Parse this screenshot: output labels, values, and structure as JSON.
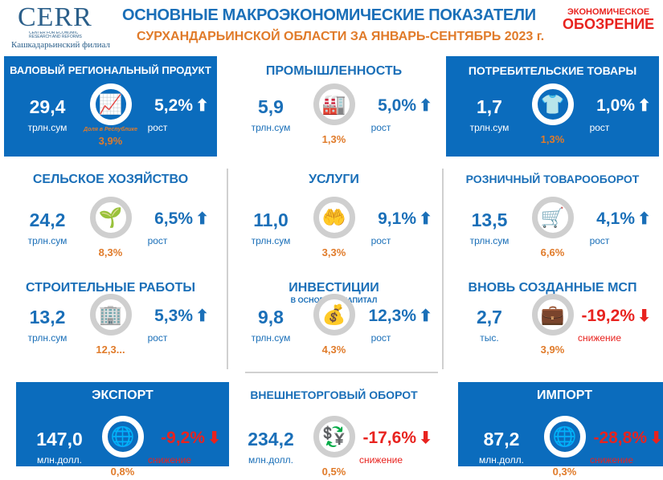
{
  "header": {
    "logo_text": "CERR",
    "logo_subtext": "CENTER FOR ECONOMIC RESEARCH AND REFORMS",
    "branch": "Кашкадарьинский филиал",
    "title": "ОСНОВНЫЕ МАКРОЭКОНОМИЧЕСКИЕ ПОКАЗАТЕЛИ",
    "subtitle": "СУРХАНДАРЬИНСКОЙ ОБЛАСТИ ЗА ЯНВАРЬ-СЕНТЯБРЬ 2023 г.",
    "brand_line1": "ЭКОНОМИЧЕСКОЕ",
    "brand_line2": "ОБОЗРЕНИЕ"
  },
  "colors": {
    "blue": "#0b6cbd",
    "orange": "#e07b2a",
    "red": "#e8231f"
  },
  "cards": [
    {
      "title": "ВАЛОВЫЙ РЕГИОНАЛЬНЫЙ ПРОДУКТ",
      "value": "29,4",
      "unit": "трлн.сум",
      "share_note": "Доля в Республике",
      "share": "3,9%",
      "change": "5,2%",
      "direction": "up",
      "change_label": "рост",
      "icon": "growth-chart-icon",
      "glyph": "📈",
      "style": "blue"
    },
    {
      "title": "ПРОМЫШЛЕННОСТЬ",
      "value": "5,9",
      "unit": "трлн.сум",
      "share": "1,3%",
      "change": "5,0%",
      "direction": "up",
      "change_label": "рост",
      "icon": "factory-icon",
      "glyph": "🏭",
      "style": "white"
    },
    {
      "title": "ПОТРЕБИТЕЛЬСКИЕ ТОВАРЫ",
      "value": "1,7",
      "unit": "трлн.сум",
      "share": "1,3%",
      "change": "1,0%",
      "direction": "up",
      "change_label": "рост",
      "icon": "tshirt-icon",
      "glyph": "👕",
      "style": "blue"
    },
    {
      "title": "СЕЛЬСКОЕ ХОЗЯЙСТВО",
      "value": "24,2",
      "unit": "трлн.сум",
      "share": "8,3%",
      "change": "6,5%",
      "direction": "up",
      "change_label": "рост",
      "icon": "shovel-plant-icon",
      "glyph": "🌱",
      "style": "white"
    },
    {
      "title": "УСЛУГИ",
      "value": "11,0",
      "unit": "трлн.сум",
      "share": "3,3%",
      "change": "9,1%",
      "direction": "up",
      "change_label": "рост",
      "icon": "service-hand-icon",
      "glyph": "🤲",
      "style": "white"
    },
    {
      "title": "РОЗНИЧНЫЙ ТОВАРООБОРОТ",
      "value": "13,5",
      "unit": "трлн.сум",
      "share": "6,6%",
      "change": "4,1%",
      "direction": "up",
      "change_label": "рост",
      "icon": "shopping-cart-icon",
      "glyph": "🛒",
      "style": "white"
    },
    {
      "title": "СТРОИТЕЛЬНЫЕ РАБОТЫ",
      "value": "13,2",
      "unit": "трлн.сум",
      "share": "12,3...",
      "change": "5,3%",
      "direction": "up",
      "change_label": "рост",
      "icon": "building-icon",
      "glyph": "🏢",
      "style": "white"
    },
    {
      "title": "ИНВЕСТИЦИИ",
      "subtitle": "В ОСНОВНОЙ КАПИТАЛ",
      "value": "9,8",
      "unit": "трлн.сум",
      "share": "4,3%",
      "change": "12,3%",
      "direction": "up",
      "change_label": "рост",
      "icon": "money-bag-hand-icon",
      "glyph": "💰",
      "style": "white"
    },
    {
      "title": "ВНОВЬ СОЗДАННЫЕ МСП",
      "value": "2,7",
      "unit": "тыс.",
      "share": "3,9%",
      "change": "-19,2%",
      "direction": "down",
      "change_label": "снижение",
      "icon": "briefcase-icon",
      "glyph": "💼",
      "style": "white"
    },
    {
      "title": "ЭКСПОРТ",
      "value": "147,0",
      "unit": "млн.долл.",
      "share": "0,8%",
      "change": "-9,2%",
      "direction": "down",
      "change_label": "снижение",
      "icon": "globe-export-icon",
      "glyph": "🌐",
      "style": "blue"
    },
    {
      "title": "ВНЕШНЕТОРГОВЫЙ ОБОРОТ",
      "value": "234,2",
      "unit": "млн.долл.",
      "share": "0,5%",
      "change": "-17,6%",
      "direction": "down",
      "change_label": "снижение",
      "icon": "currency-exchange-icon",
      "glyph": "💱",
      "style": "white"
    },
    {
      "title": "ИМПОРТ",
      "value": "87,2",
      "unit": "млн.долл.",
      "share": "0,3%",
      "change": "-28,8%",
      "direction": "down",
      "change_label": "снижение",
      "icon": "globe-import-icon",
      "glyph": "🌐",
      "style": "blue"
    }
  ]
}
